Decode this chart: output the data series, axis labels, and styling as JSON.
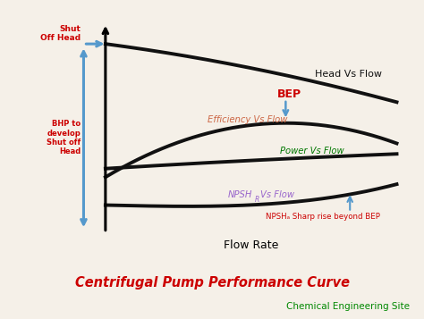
{
  "title": "Centrifugal Pump Performance Curve",
  "subtitle": "Chemical Engineering Site",
  "title_color": "#cc0000",
  "subtitle_color": "#008800",
  "bg_color": "#f5f0e8",
  "plot_bg_color": "#e8dfc8",
  "xlabel": "Flow Rate",
  "curve_lw": 2.8,
  "head_label": "Head Vs Flow",
  "efficiency_label": "Efficiency Vs Flow",
  "power_label": "Power Vs Flow",
  "npshr_label": "Vs Flow",
  "bep_text": "BEP",
  "bep_color": "#cc0000",
  "npsha_text": "NPSHₐ Sharp rise beyond BEP",
  "npsha_color": "#cc0000",
  "shut_off_text": "Shut\nOff Head",
  "shut_off_color": "#cc0000",
  "bhp_text": "BHP to\ndevelop\nShut off\nHead",
  "bhp_color": "#cc0000",
  "arrow_color": "#5599cc",
  "axis_color": "#111111",
  "curve_color": "#111111",
  "eff_label_color": "#cc6644",
  "power_label_color": "#007700",
  "npshr_label_color": "#9966cc"
}
